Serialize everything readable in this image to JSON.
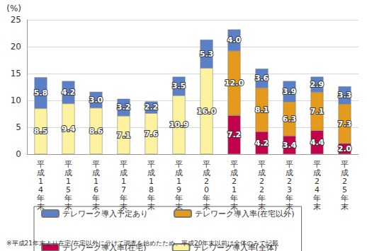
{
  "chart_data": {
    "type": "bar",
    "stacked": true,
    "y_label": "(%)",
    "note": "※平成21年末より在宅/在宅以外に分けて調査を始めたため、平成20年末以前は全体のみで記載",
    "categories": [
      "平成14年末",
      "平成15年末",
      "平成16年末",
      "平成17年末",
      "平成18年末",
      "平成19年末",
      "平成20年末",
      "平成21年末",
      "平成22年末",
      "平成23年末",
      "平成24年末",
      "平成25年末"
    ],
    "ylim": [
      0,
      25
    ],
    "yticks": [
      0,
      5,
      10,
      15,
      20,
      25
    ],
    "grid": true,
    "legend": "bottom",
    "data_labels": true,
    "series": [
      {
        "name": "テレワーク導入予定あり",
        "color": "#5b80c8",
        "values": [
          5.8,
          4.2,
          3.0,
          3.2,
          2.2,
          3.5,
          5.3,
          4.0,
          3.6,
          3.9,
          2.9,
          3.3
        ],
        "value_labels": [
          "5.8",
          "4.2",
          "3.0",
          "3.2",
          "2.2",
          "3.5",
          "5.3",
          "4.0",
          "3.6",
          "3.9",
          "2.9",
          "3.3"
        ]
      },
      {
        "name": "テレワーク導入率(在宅以外)",
        "color": "#e49b1d",
        "values": [
          null,
          null,
          null,
          null,
          null,
          null,
          null,
          12.0,
          8.1,
          6.3,
          7.1,
          7.3
        ],
        "value_labels": [
          null,
          null,
          null,
          null,
          null,
          null,
          null,
          "12.0",
          "8.1",
          "6.3",
          "7.1",
          "7.3"
        ]
      },
      {
        "name": "テレワーク導入率(在宅)",
        "color": "#c3004b",
        "values": [
          null,
          null,
          null,
          null,
          null,
          null,
          null,
          7.2,
          4.2,
          3.4,
          4.4,
          2.0
        ],
        "value_labels": [
          null,
          null,
          null,
          null,
          null,
          null,
          null,
          "7.2",
          "4.2",
          "3.4",
          "4.4",
          "2.0"
        ]
      },
      {
        "name": "テレワーク導入率(全体)",
        "color": "#fdf2a0",
        "values": [
          8.5,
          9.4,
          8.6,
          7.1,
          7.6,
          10.9,
          16.0,
          null,
          null,
          null,
          null,
          null
        ],
        "value_labels": [
          "8.5",
          "9.4",
          "8.6",
          "7.1",
          "7.6",
          "10.9",
          "16.0",
          null,
          null,
          null,
          null,
          null
        ]
      }
    ]
  }
}
